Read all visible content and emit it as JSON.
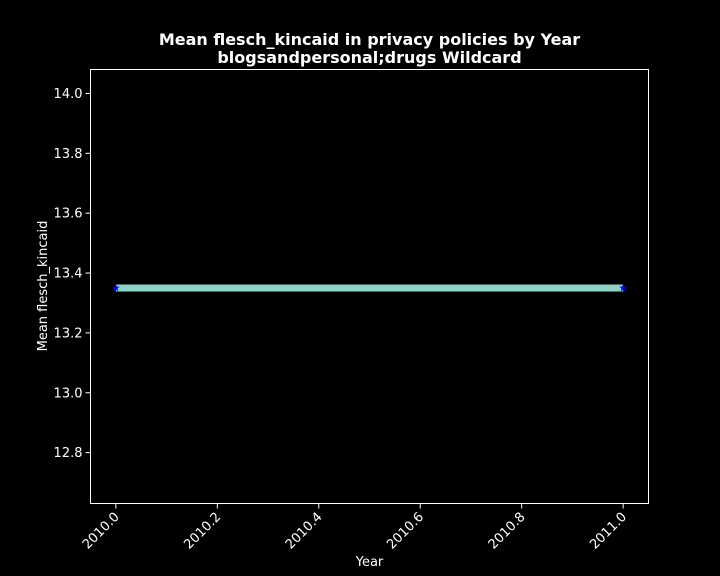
{
  "chart_data": {
    "type": "line",
    "title_line1": "Mean flesch_kincaid in privacy policies by Year",
    "title_line2": "blogsandpersonal;drugs Wildcard",
    "xlabel": "Year",
    "ylabel": "Mean flesch_kincaid",
    "xlim": [
      2009.95,
      2011.05
    ],
    "ylim": [
      12.63,
      14.08
    ],
    "x_ticks": [
      "2010.0",
      "2010.2",
      "2010.4",
      "2010.6",
      "2010.8",
      "2011.0"
    ],
    "y_ticks": [
      "12.8",
      "13.0",
      "13.2",
      "13.4",
      "13.6",
      "13.8",
      "14.0"
    ],
    "grid": false,
    "series": [
      {
        "x": [
          2010,
          2011
        ],
        "y": [
          13.35,
          13.35
        ],
        "line_color": "#8dd3c7",
        "marker_color": "#0000ff",
        "marker": "star"
      }
    ]
  }
}
